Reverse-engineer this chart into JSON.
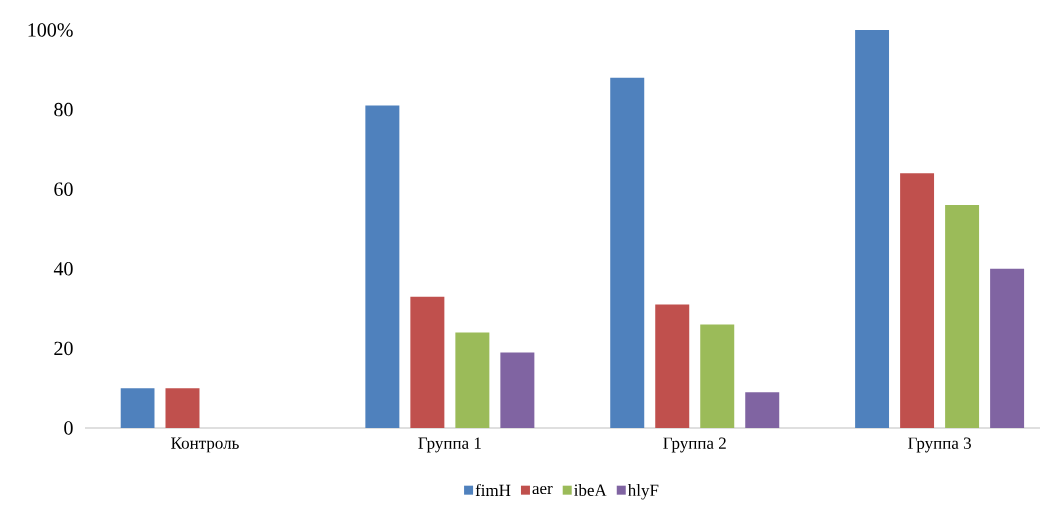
{
  "chart_data": {
    "type": "bar",
    "categories": [
      "Контроль",
      "Группа 1",
      "Группа 2",
      "Группа 3"
    ],
    "series": [
      {
        "name": "fimH",
        "color": "#4f81bd",
        "values": [
          10,
          81,
          88,
          100
        ]
      },
      {
        "name": "aer",
        "color": "#c0504d",
        "values": [
          10,
          33,
          31,
          64
        ]
      },
      {
        "name": "ibeA",
        "color": "#9bbb59",
        "values": [
          0,
          24,
          26,
          56
        ]
      },
      {
        "name": "hlyF",
        "color": "#8064a2",
        "values": [
          0,
          19,
          9,
          40
        ]
      }
    ],
    "ylim": [
      0,
      100
    ],
    "yticks": [
      0,
      20,
      40,
      60,
      80,
      {
        "value": 100,
        "label": "100%"
      }
    ],
    "legend": "bottom"
  }
}
